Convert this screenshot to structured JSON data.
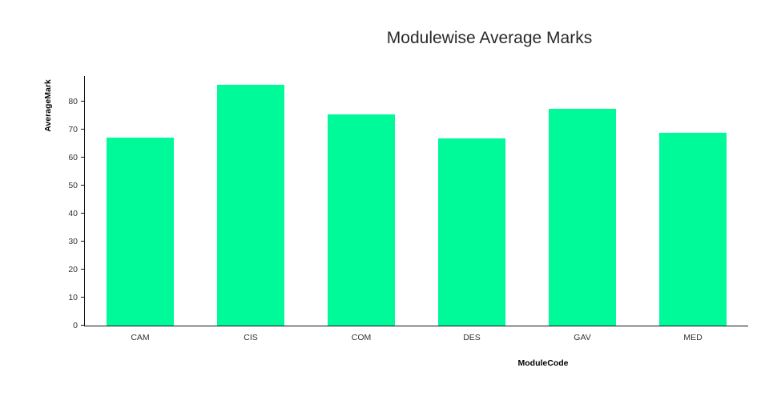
{
  "chart_data": {
    "type": "bar",
    "title": "Modulewise Average Marks",
    "xlabel": "ModuleCode",
    "ylabel": "AverageMark",
    "categories": [
      "CAM",
      "CIS",
      "COM",
      "DES",
      "GAV",
      "MED"
    ],
    "values": [
      67,
      85.9,
      75.2,
      66.8,
      77.4,
      68.8
    ],
    "ylim": [
      0,
      89
    ],
    "yticks": [
      0,
      10,
      20,
      30,
      40,
      50,
      60,
      70,
      80
    ],
    "bar_color": "#00fa9a",
    "axis_color": "#111111",
    "grid": false,
    "legend": false
  }
}
